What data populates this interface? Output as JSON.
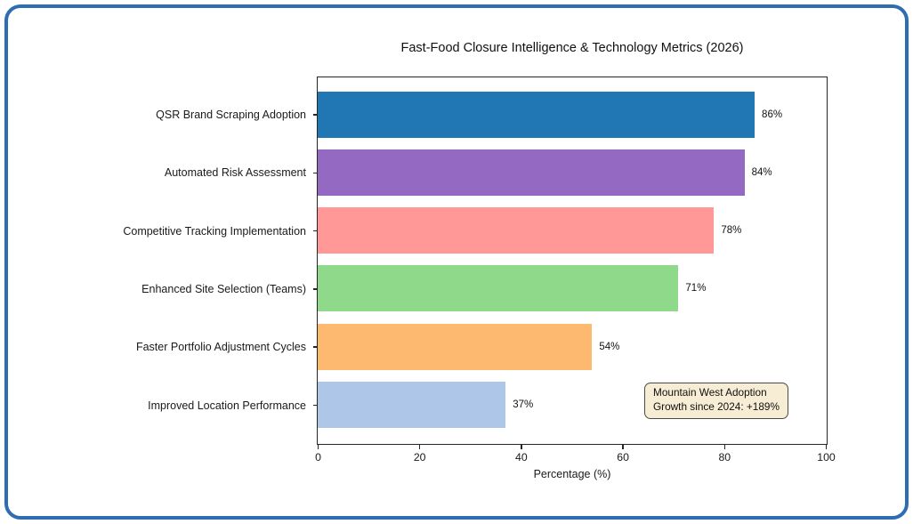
{
  "frame": {
    "border_color": "#2e6db4"
  },
  "chart_data": {
    "type": "bar",
    "orientation": "horizontal",
    "title": "Fast-Food Closure Intelligence & Technology Metrics (2026)",
    "categories": [
      "QSR Brand Scraping Adoption",
      "Automated Risk Assessment",
      "Competitive Tracking Implementation",
      "Enhanced Site Selection (Teams)",
      "Faster Portfolio Adjustment Cycles",
      "Improved Location Performance"
    ],
    "values": [
      86,
      84,
      78,
      71,
      54,
      37
    ],
    "value_labels": [
      "86%",
      "84%",
      "78%",
      "71%",
      "54%",
      "37%"
    ],
    "bar_colors": [
      "#2077b4",
      "#9469c1",
      "#ff9896",
      "#8fd98a",
      "#fdb970",
      "#aec7e8"
    ],
    "xlabel": "Percentage (%)",
    "xlim": [
      0,
      100
    ],
    "xticks": [
      "0",
      "20",
      "40",
      "60",
      "80",
      "100"
    ],
    "grid": false,
    "legend": "none",
    "annotation": {
      "line1": "Mountain West Adoption",
      "line2": "Growth since 2024: +189%",
      "bg_color": "#f7ecd4",
      "border_color": "#4a4a4a"
    }
  }
}
